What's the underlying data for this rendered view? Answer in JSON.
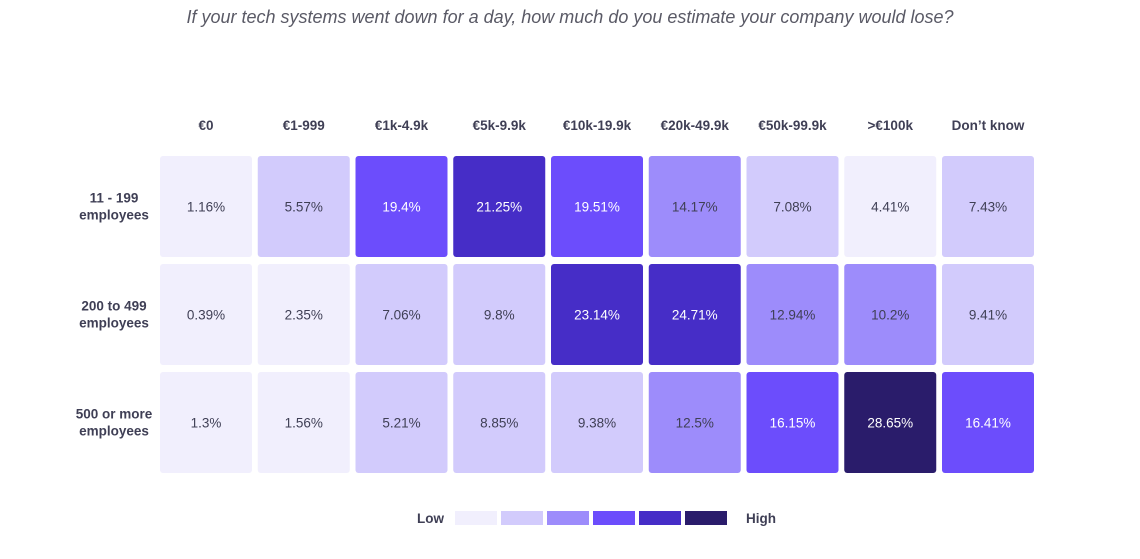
{
  "chart_data": {
    "type": "heatmap",
    "title": "If your tech systems went down for a day, how much do you estimate your company would lose?",
    "columns": [
      "€0",
      "€1-999",
      "€1k-4.9k",
      "€5k-9.9k",
      "€10k-19.9k",
      "€20k-49.9k",
      "€50k-99.9k",
      ">€100k",
      "Don’t know"
    ],
    "rows": [
      {
        "label": [
          "11 - 199",
          "employees"
        ],
        "values": [
          1.16,
          5.57,
          19.4,
          21.25,
          19.51,
          14.17,
          7.08,
          4.41,
          7.43
        ],
        "labels": [
          "1.16%",
          "5.57%",
          "19.4%",
          "21.25%",
          "19.51%",
          "14.17%",
          "7.08%",
          "4.41%",
          "7.43%"
        ]
      },
      {
        "label": [
          "200 to 499",
          "employees"
        ],
        "values": [
          0.39,
          2.35,
          7.06,
          9.8,
          23.14,
          24.71,
          12.94,
          10.2,
          9.41
        ],
        "labels": [
          "0.39%",
          "2.35%",
          "7.06%",
          "9.8%",
          "23.14%",
          "24.71%",
          "12.94%",
          "10.2%",
          "9.41%"
        ]
      },
      {
        "label": [
          "500 or more",
          "employees"
        ],
        "values": [
          1.3,
          1.56,
          5.21,
          8.85,
          9.38,
          12.5,
          16.15,
          28.65,
          16.41
        ],
        "labels": [
          "1.3%",
          "1.56%",
          "5.21%",
          "8.85%",
          "9.38%",
          "12.5%",
          "16.15%",
          "28.65%",
          "16.41%"
        ]
      }
    ],
    "color_scale": [
      "#f1effd",
      "#d2cbfc",
      "#9d8cfb",
      "#6c4dfc",
      "#462dc7",
      "#2a1c6b"
    ],
    "thresholds": [
      5,
      10,
      15,
      20,
      26
    ],
    "legend": {
      "low": "Low",
      "high": "High",
      "placement": "bottom-center"
    }
  }
}
